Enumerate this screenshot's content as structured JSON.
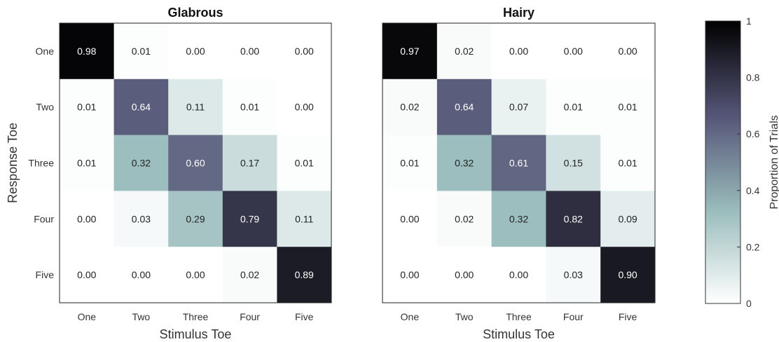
{
  "chart_data": [
    {
      "type": "heatmap",
      "title": "Glabrous",
      "xlabel": "Stimulus Toe",
      "ylabel": "Response Toe",
      "x_categories": [
        "One",
        "Two",
        "Three",
        "Four",
        "Five"
      ],
      "y_categories": [
        "One",
        "Two",
        "Three",
        "Four",
        "Five"
      ],
      "values": [
        [
          0.98,
          0.01,
          0.0,
          0.0,
          0.0
        ],
        [
          0.01,
          0.64,
          0.11,
          0.01,
          0.0
        ],
        [
          0.01,
          0.32,
          0.6,
          0.17,
          0.01
        ],
        [
          0.0,
          0.03,
          0.29,
          0.79,
          0.11
        ],
        [
          0.0,
          0.0,
          0.0,
          0.02,
          0.89
        ]
      ]
    },
    {
      "type": "heatmap",
      "title": "Hairy",
      "xlabel": "Stimulus Toe",
      "ylabel": "",
      "x_categories": [
        "One",
        "Two",
        "Three",
        "Four",
        "Five"
      ],
      "y_categories": [],
      "values": [
        [
          0.97,
          0.02,
          0.0,
          0.0,
          0.0
        ],
        [
          0.02,
          0.64,
          0.07,
          0.01,
          0.01
        ],
        [
          0.01,
          0.32,
          0.61,
          0.15,
          0.01
        ],
        [
          0.0,
          0.02,
          0.32,
          0.82,
          0.09
        ],
        [
          0.0,
          0.0,
          0.0,
          0.03,
          0.9
        ]
      ]
    }
  ],
  "colorbar": {
    "label": "Proportion of Trials",
    "range": [
      0,
      1
    ],
    "tick_values": [
      0,
      0.2,
      0.4,
      0.6,
      0.8,
      1
    ],
    "tick_labels": [
      "0",
      "0.2",
      "0.4",
      "0.6",
      "0.8",
      "1"
    ],
    "colormap": [
      "#ffffff",
      "#99bbbb",
      "#555577",
      "#000000"
    ]
  }
}
